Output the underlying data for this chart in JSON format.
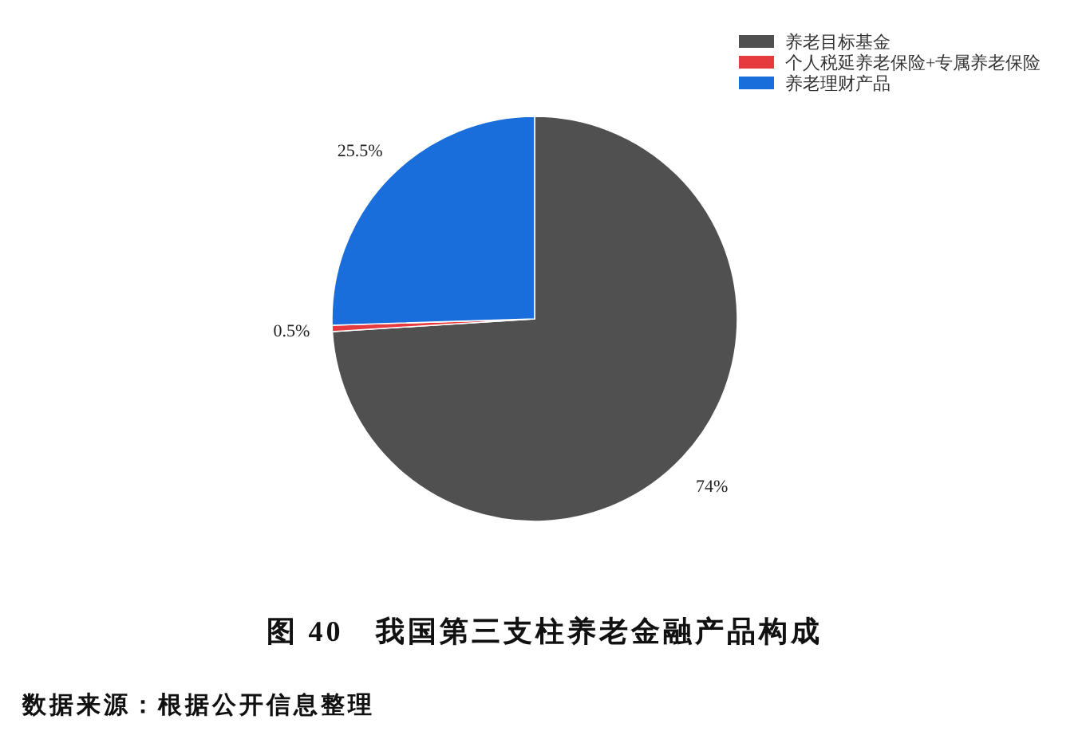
{
  "chart_data": {
    "type": "pie",
    "title": "图 40　我国第三支柱养老金融产品构成",
    "categories": [
      "养老目标基金",
      "个人税延养老保险+专属养老保险",
      "养老理财产品"
    ],
    "values": [
      74,
      0.5,
      25.5
    ],
    "colors": [
      "#505050",
      "#e63b3e",
      "#1a6edb"
    ],
    "value_labels": [
      "74%",
      "0.5%",
      "25.5%"
    ],
    "legend": "top right",
    "annotations": [
      "数据来源：根据公开信息整理"
    ]
  }
}
